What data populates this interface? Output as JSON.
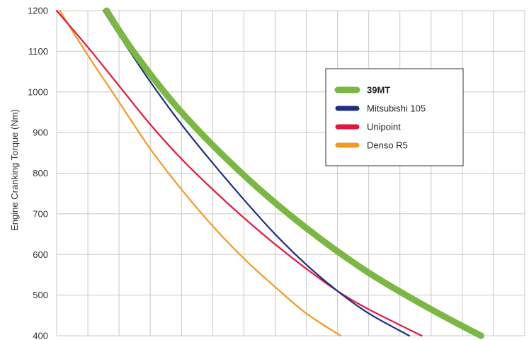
{
  "chart_data": {
    "type": "line",
    "title": "",
    "xlabel": "",
    "ylabel": "Engine Cranking Torque (Nm)",
    "ylim": [
      400,
      1200
    ],
    "yticks": [
      400,
      500,
      600,
      700,
      800,
      900,
      1000,
      1100,
      1200
    ],
    "xlim": [
      0,
      15
    ],
    "x_gridlines": 15,
    "grid": true,
    "legend_position": "upper-right",
    "series": [
      {
        "name": "39MT",
        "color": "#7ab843",
        "bold": true,
        "x": [
          1.6,
          2.5,
          4,
          6,
          8,
          10,
          12,
          13.6
        ],
        "values": [
          1200,
          1095,
          950,
          795,
          665,
          555,
          465,
          400
        ]
      },
      {
        "name": "Mitsubishi 105",
        "color": "#1f2f86",
        "x": [
          1.5,
          2,
          3,
          4,
          5,
          6,
          7,
          8,
          9,
          10,
          11.3
        ],
        "values": [
          1200,
          1140,
          1025,
          920,
          825,
          735,
          650,
          575,
          510,
          455,
          400
        ]
      },
      {
        "name": "Unipoint",
        "color": "#e3173e",
        "x": [
          0,
          1,
          2,
          3,
          4,
          5,
          6,
          7,
          8,
          9,
          10,
          11.7
        ],
        "values": [
          1200,
          1110,
          1015,
          920,
          835,
          760,
          690,
          625,
          565,
          510,
          465,
          400
        ]
      },
      {
        "name": "Denso R5",
        "color": "#f29b23",
        "x": [
          0.1,
          1,
          2,
          3,
          4,
          5,
          6,
          7,
          8,
          9.1
        ],
        "values": [
          1200,
          1090,
          975,
          860,
          760,
          670,
          590,
          520,
          455,
          400
        ]
      }
    ]
  }
}
